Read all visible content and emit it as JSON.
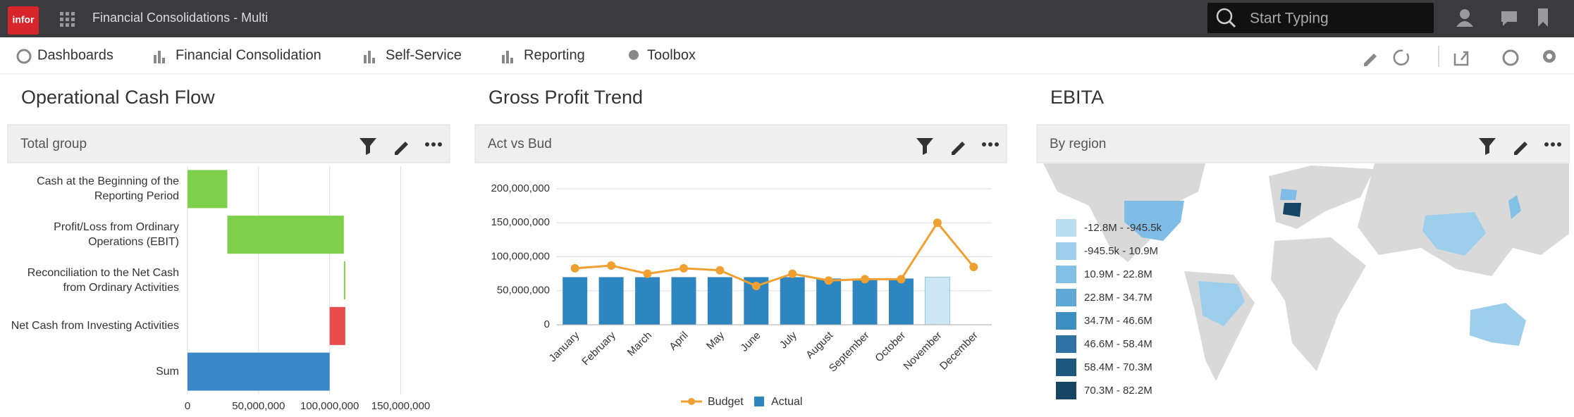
{
  "header": {
    "logo": "infor",
    "title": "Financial Consolidations - Multi",
    "search_placeholder": "Start Typing"
  },
  "nav": {
    "items": [
      "Dashboards",
      "Financial Consolidation",
      "Self-Service",
      "Reporting",
      "Toolbox"
    ]
  },
  "chart_data": [
    {
      "type": "waterfall",
      "title": "Operational Cash Flow",
      "subtitle": "Total group",
      "categories": [
        "Cash at the Beginning of the Reporting Period",
        "Profit/Loss from Ordinary Operations (EBIT)",
        "Reconciliation to the Net Cash from Ordinary Activities",
        "Net Cash from Investing Activities",
        "Sum"
      ],
      "values": [
        28000000,
        82000000,
        1000000,
        -11000000,
        100000000
      ],
      "measures": [
        "relative",
        "relative",
        "relative",
        "relative",
        "total"
      ],
      "bar_colors": [
        "#7ed04b",
        "#7ed04b",
        "#7ed04b",
        "#e84c4c",
        "#3a87c8"
      ],
      "xlim": [
        0,
        180000000
      ],
      "xticks": [
        0,
        {
          "value": 50000000,
          "label": "50,000,000"
        },
        {
          "value": 100000000,
          "label": "100,000,000"
        },
        {
          "value": 150000000,
          "label": "150,000,000"
        }
      ],
      "grid": true
    },
    {
      "type": "bar-line",
      "title": "Gross Profit Trend",
      "subtitle": "Act vs Bud",
      "categories": [
        "January",
        "February",
        "March",
        "April",
        "May",
        "June",
        "July",
        "August",
        "September",
        "October",
        "November",
        "December"
      ],
      "series": [
        {
          "name": "Budget",
          "kind": "line",
          "color": "#f0a030",
          "values": [
            83000000,
            87000000,
            75000000,
            83000000,
            80000000,
            57000000,
            75000000,
            65000000,
            67000000,
            67000000,
            150000000,
            85000000
          ]
        },
        {
          "name": "Actual",
          "kind": "bar",
          "color": "#2e86c1",
          "colors": [
            "#2e86c1",
            "#2e86c1",
            "#2e86c1",
            "#2e86c1",
            "#2e86c1",
            "#2e86c1",
            "#2e86c1",
            "#2e86c1",
            "#2e86c1",
            "#2e86c1",
            "#cce6f5",
            "#2e86c1"
          ],
          "values": [
            70000000,
            70000000,
            70000000,
            70000000,
            70000000,
            70000000,
            70000000,
            68000000,
            68000000,
            68000000,
            70000000,
            null
          ]
        }
      ],
      "ylim": [
        0,
        200000000
      ],
      "yticks": [
        0,
        {
          "value": 50000000,
          "label": "50,000,000"
        },
        {
          "value": 100000000,
          "label": "100,000,000"
        },
        {
          "value": 150000000,
          "label": "150,000,000"
        },
        {
          "value": 200000000,
          "label": "200,000,000"
        }
      ],
      "grid": true,
      "legend": "bottom"
    },
    {
      "type": "map",
      "title": "EBITA",
      "subtitle": "By region",
      "legend": {
        "labels": [
          "-12.8M - -945.5k",
          "-945.5k - 10.9M",
          "10.9M - 22.8M",
          "22.8M - 34.7M",
          "34.7M - 46.6M",
          "46.6M - 58.4M",
          "58.4M - 70.3M",
          "70.3M - 82.2M"
        ],
        "colors": [
          "#b9def2",
          "#9dcfec",
          "#82c0e6",
          "#5fa8d6",
          "#3d8fc2",
          "#2d72a3",
          "#20577f",
          "#164463"
        ]
      }
    }
  ]
}
